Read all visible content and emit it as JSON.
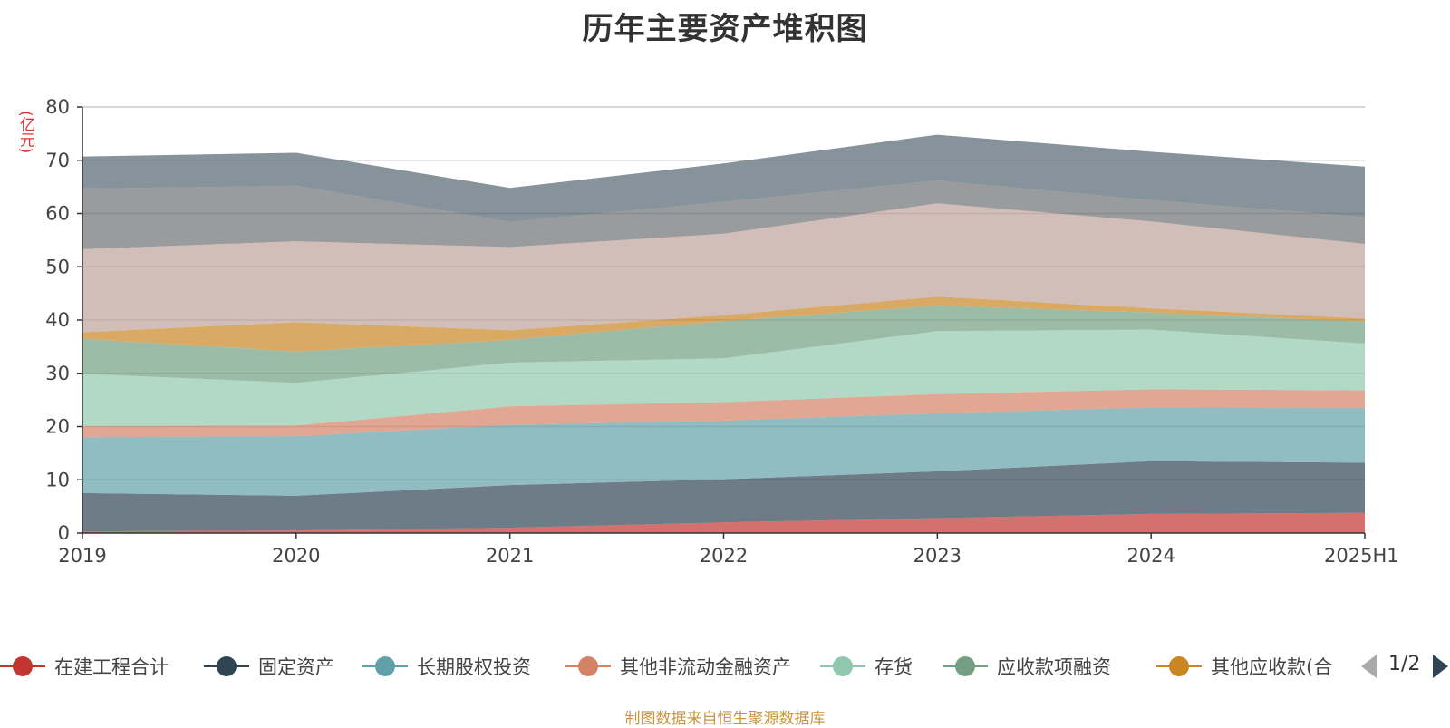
{
  "header": {
    "unit_label": "(亿元)"
  },
  "chart_data": {
    "type": "area",
    "stacked": true,
    "title": "历年主要资产堆积图",
    "ylabel": "(亿元)",
    "xlabel": "",
    "ylim": [
      0,
      80
    ],
    "yticks": [
      0,
      10,
      20,
      30,
      40,
      50,
      60,
      70,
      80
    ],
    "grid": true,
    "legend_position": "bottom",
    "categories": [
      "2019",
      "2020",
      "2021",
      "2022",
      "2023",
      "2024",
      "2025H1"
    ],
    "series": [
      {
        "name": "在建工程合计",
        "color": "#c23531",
        "values": [
          0.3,
          0.5,
          1.0,
          2.0,
          2.8,
          3.6,
          3.8
        ]
      },
      {
        "name": "固定资产",
        "color": "#2f4554",
        "values": [
          7.2,
          6.5,
          8.0,
          8.1,
          8.8,
          9.9,
          9.4
        ]
      },
      {
        "name": "长期股权投资",
        "color": "#61a0a8",
        "values": [
          10.5,
          11.2,
          11.3,
          11.0,
          10.9,
          10.1,
          10.3
        ]
      },
      {
        "name": "其他非流动金融资产",
        "color": "#d48265",
        "values": [
          2.1,
          2.0,
          3.5,
          3.5,
          3.6,
          3.4,
          3.3
        ]
      },
      {
        "name": "存货",
        "color": "#91c7ae",
        "values": [
          9.8,
          8.0,
          8.2,
          8.2,
          11.8,
          11.2,
          8.8
        ]
      },
      {
        "name": "应收款项融资",
        "color": "#749f83",
        "values": [
          6.6,
          5.9,
          4.3,
          7.0,
          4.8,
          3.2,
          4.1
        ]
      },
      {
        "name": "其他应收款(合计)",
        "color": "#ca8622",
        "values": [
          1.2,
          5.5,
          1.8,
          1.1,
          1.7,
          0.8,
          0.6
        ]
      },
      {
        "values": [
          15.6,
          15.2,
          15.6,
          15.3,
          17.5,
          16.3,
          14.0
        ]
      },
      {
        "values": [
          11.4,
          10.4,
          4.7,
          6.0,
          4.3,
          4.0,
          5.0
        ]
      },
      {
        "values": [
          6.0,
          6.2,
          6.4,
          7.2,
          8.6,
          9.1,
          9.5
        ]
      }
    ],
    "hidden_series_colors": [
      "#bda29a",
      "#6e7074",
      "#546570"
    ]
  },
  "legend": {
    "items": [
      {
        "label": "在建工程合计",
        "color": "#c23531"
      },
      {
        "label": "固定资产",
        "color": "#2f4554"
      },
      {
        "label": "长期股权投资",
        "color": "#61a0a8"
      },
      {
        "label": "其他非流动金融资产",
        "color": "#d48265"
      },
      {
        "label": "存货",
        "color": "#91c7ae"
      },
      {
        "label": "应收款项融资",
        "color": "#749f83"
      },
      {
        "label": "其他应收款(合",
        "color": "#ca8622"
      }
    ],
    "page_text": "1/2",
    "prev_icon": "triangle-left-icon",
    "next_icon": "triangle-right-icon"
  },
  "footer": {
    "source": "制图数据来自恒生聚源数据库"
  }
}
